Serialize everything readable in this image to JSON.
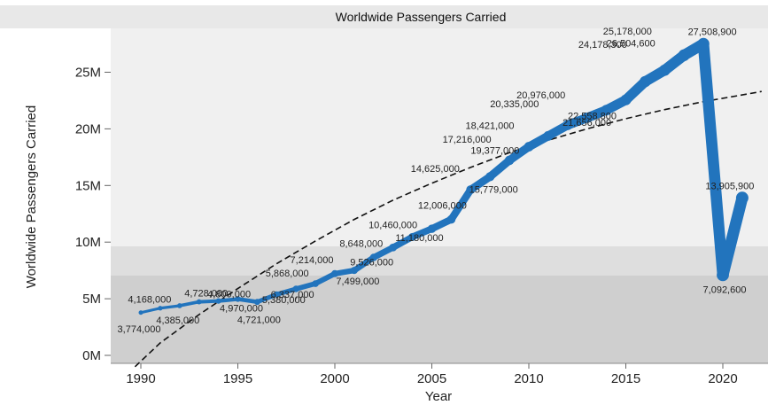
{
  "chart_data": {
    "type": "line",
    "title": "Worldwide Passengers Carried",
    "xlabel": "Year",
    "ylabel": "Worldwide Passengers Carried",
    "xlim": [
      1989,
      2022
    ],
    "ylim": [
      -1000000,
      30000000
    ],
    "xticks": [
      1990,
      1995,
      2000,
      2005,
      2010,
      2015,
      2020
    ],
    "xtick_labels": [
      "1990",
      "1995",
      "2000",
      "2005",
      "2010",
      "2015",
      "2020"
    ],
    "yticks": [
      0,
      5000000,
      10000000,
      15000000,
      20000000,
      25000000
    ],
    "ytick_labels": [
      "0M",
      "5M",
      "10M",
      "15M",
      "20M",
      "25M"
    ],
    "grid": false,
    "colors": {
      "line": "#2274bd",
      "trend": "#111111",
      "title_band": "#e8e8e8",
      "plot_bg": "#f0f0f0",
      "band_light": "#dedede",
      "band_dark": "#cfcfcf"
    },
    "series": [
      {
        "x": [
          1990,
          1991,
          1992,
          1993,
          1994,
          1995,
          1996,
          1997,
          1998,
          1999,
          2000,
          2001,
          2002,
          2003,
          2004,
          2005,
          2006,
          2007,
          2008,
          2009,
          2010,
          2011,
          2012,
          2013,
          2014,
          2015,
          2016,
          2017,
          2018,
          2019,
          2020,
          2021
        ],
        "y": [
          3774000,
          4168000,
          4385000,
          4728000,
          4800000,
          4970000,
          4721000,
          5380000,
          5868000,
          6337000,
          7214000,
          7499000,
          8648000,
          9526000,
          10460000,
          11180000,
          12006000,
          14625000,
          15779000,
          17216000,
          18421000,
          19377000,
          20335000,
          20976000,
          21656000,
          22558800,
          24178300,
          25178000,
          26504600,
          27508900,
          7092600,
          13905900
        ],
        "labels": [
          "3,774,000",
          "4,168,000",
          "4,385,000",
          "4,728,000",
          "4,800,000",
          "4,970,000",
          "4,721,000",
          "5,380,000",
          "5,868,000",
          "6,337,000",
          "7,214,000",
          "7,499,000",
          "8,648,000",
          "9,526,000",
          "10,460,000",
          "11,180,000",
          "12,006,000",
          "14,625,000",
          "15,779,000",
          "17,216,000",
          "18,421,000",
          "19,377,000",
          "20,335,000",
          "20,976,000",
          "21,656,000",
          "22,558,800",
          "24,178,300",
          "25,178,000",
          "26,504,600",
          "27,508,900",
          "7,092,600",
          "13,905,900"
        ]
      }
    ],
    "trendline": {
      "x": [
        1989.7,
        1991,
        1993,
        1995,
        1997,
        1999,
        2001,
        2003,
        2005,
        2007,
        2009,
        2011,
        2013,
        2015,
        2017,
        2019,
        2021,
        2022
      ],
      "y": [
        -1000000,
        1100000,
        3600000,
        5900000,
        8100000,
        10100000,
        12000000,
        13700000,
        15200000,
        16600000,
        17900000,
        19000000,
        20000000,
        20900000,
        21700000,
        22400000,
        23000000,
        23300000
      ]
    }
  }
}
